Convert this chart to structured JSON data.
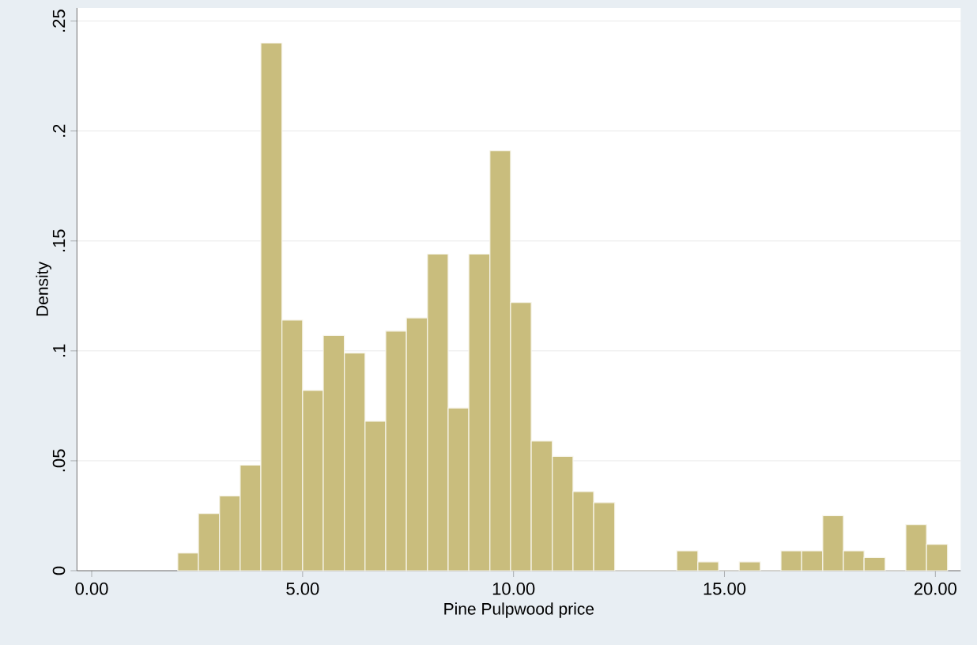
{
  "chart_data": {
    "type": "histogram",
    "xlabel": "Pine Pulpwood price",
    "ylabel": "Density",
    "bins": [
      2.04,
      2.53,
      3.03,
      3.52,
      4.01,
      4.51,
      5.0,
      5.49,
      5.99,
      6.48,
      6.97,
      7.46,
      7.96,
      8.45,
      8.94,
      9.44,
      9.93,
      10.42,
      10.92,
      11.41,
      11.9,
      12.4,
      13.87,
      14.37,
      14.86,
      15.35,
      15.85,
      16.34,
      16.83,
      17.33,
      17.82,
      18.31,
      18.81,
      19.3,
      19.79,
      20.29
    ],
    "values": [
      0.008,
      0.026,
      0.034,
      0.048,
      0.24,
      0.114,
      0.082,
      0.107,
      0.099,
      0.068,
      0.109,
      0.115,
      0.144,
      0.074,
      0.144,
      0.191,
      0.122,
      0.059,
      0.052,
      0.036,
      0.031,
      0,
      0.009,
      0.004,
      0,
      0.004,
      0,
      0.009,
      0.009,
      0.025,
      0.009,
      0.006,
      0,
      0.021,
      0.012
    ],
    "color": "#c9bd7d",
    "xlim": [
      -0.35,
      20.6
    ],
    "ylim": [
      0,
      0.256
    ],
    "xticks": [
      {
        "value": 0,
        "label": "0.00"
      },
      {
        "value": 5,
        "label": "5.00"
      },
      {
        "value": 10,
        "label": "10.00"
      },
      {
        "value": 15,
        "label": "15.00"
      },
      {
        "value": 20,
        "label": "20.00"
      }
    ],
    "yticks": [
      {
        "value": 0,
        "label": "0"
      },
      {
        "value": 0.05,
        "label": ".05"
      },
      {
        "value": 0.1,
        "label": ".1"
      },
      {
        "value": 0.15,
        "label": ".15"
      },
      {
        "value": 0.2,
        "label": ".2"
      },
      {
        "value": 0.25,
        "label": ".25"
      }
    ],
    "grid": "y"
  }
}
